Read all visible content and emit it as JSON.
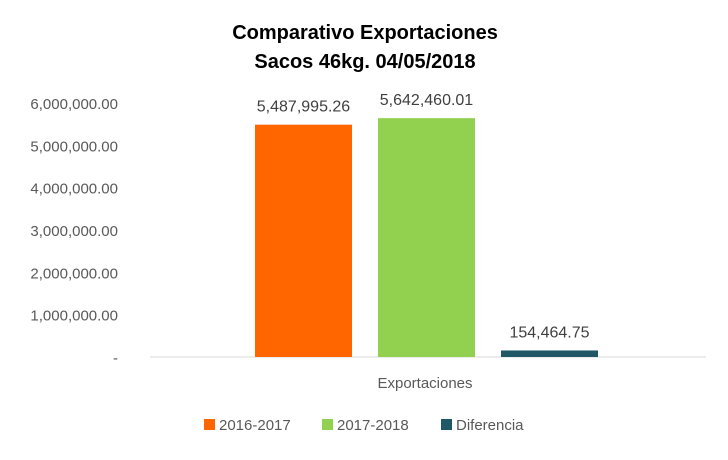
{
  "chart_data": {
    "type": "bar",
    "title": "Comparativo  Exportaciones",
    "subtitle": "Sacos 46kg. 04/05/2018",
    "categories": [
      "Exportaciones"
    ],
    "series": [
      {
        "name": "2016-2017",
        "values": [
          5487995.26
        ],
        "label": "5,487,995.26",
        "color": "#FF6600"
      },
      {
        "name": "2017-2018",
        "values": [
          5642460.01
        ],
        "label": "5,642,460.01",
        "color": "#92D050"
      },
      {
        "name": "Diferencia",
        "values": [
          154464.75
        ],
        "label": "154,464.75",
        "color": "#215868"
      }
    ],
    "y_ticks": [
      {
        "value": 0,
        "label": "-"
      },
      {
        "value": 1000000,
        "label": "1,000,000.00"
      },
      {
        "value": 2000000,
        "label": "2,000,000.00"
      },
      {
        "value": 3000000,
        "label": "3,000,000.00"
      },
      {
        "value": 4000000,
        "label": "4,000,000.00"
      },
      {
        "value": 5000000,
        "label": "5,000,000.00"
      },
      {
        "value": 6000000,
        "label": "6,000,000.00"
      }
    ],
    "ylim": [
      0,
      6000000
    ],
    "grid": false,
    "legend_position": "bottom"
  }
}
